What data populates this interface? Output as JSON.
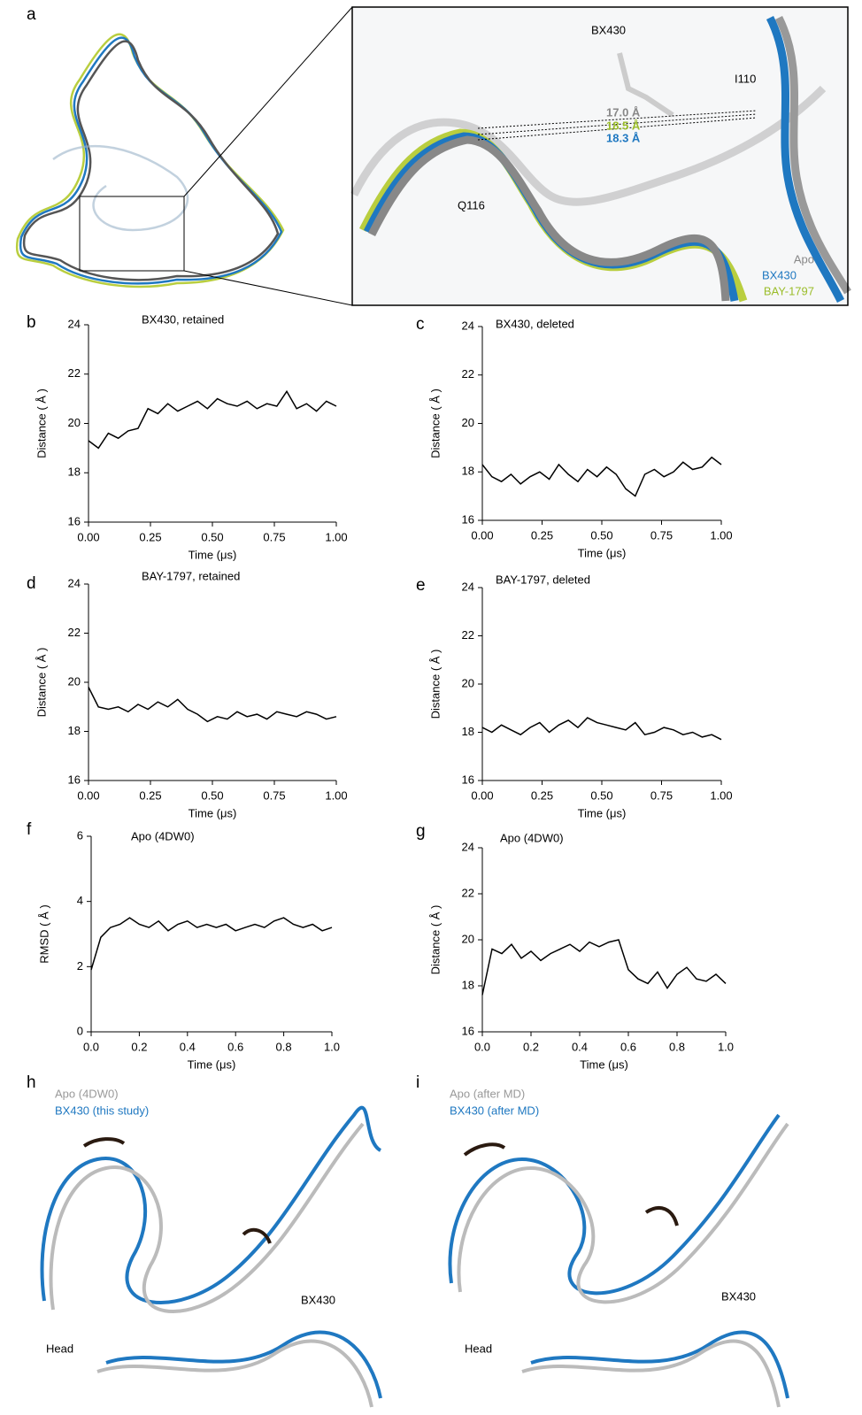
{
  "figure": {
    "panel_labels": [
      "a",
      "b",
      "c",
      "d",
      "e",
      "f",
      "g",
      "h",
      "i"
    ],
    "a": {
      "ligand": "BX430",
      "residue1": "I110",
      "residue2": "Q116",
      "distances": [
        "17.0 Å",
        "18.5 Å",
        "18.3 Å"
      ],
      "legend": [
        "Apo",
        "BX430",
        "BAY-1797"
      ]
    },
    "h": {
      "legend": [
        "Apo (4DW0)",
        "BX430 (this study)"
      ],
      "ligand": "BX430",
      "region": "Head"
    },
    "i": {
      "legend": [
        "Apo (after MD)",
        "BX430 (after MD)"
      ],
      "ligand": "BX430",
      "region": "Head"
    }
  },
  "chart_data": [
    {
      "type": "line",
      "title": "BX430, retained",
      "xlabel": "Time (μs)",
      "ylabel": "Distance ( Å )",
      "color": "#000000",
      "x": [
        0,
        0.04,
        0.08,
        0.12,
        0.16,
        0.2,
        0.24,
        0.28,
        0.32,
        0.36,
        0.4,
        0.44,
        0.48,
        0.52,
        0.56,
        0.6,
        0.64,
        0.68,
        0.72,
        0.76,
        0.8,
        0.84,
        0.88,
        0.92,
        0.96,
        1
      ],
      "values": [
        19.3,
        19.0,
        19.6,
        19.4,
        19.7,
        19.8,
        20.6,
        20.4,
        20.8,
        20.5,
        20.7,
        20.9,
        20.6,
        21.0,
        20.8,
        20.7,
        20.9,
        20.6,
        20.8,
        20.7,
        21.3,
        20.6,
        20.8,
        20.5,
        20.9,
        20.7
      ],
      "xlim": [
        0,
        1
      ],
      "ylim": [
        16,
        24
      ],
      "yticks": [
        16,
        18,
        20,
        22,
        24
      ],
      "xticks": [
        {
          "value": 0,
          "label": "0.00"
        },
        {
          "value": 0.25,
          "label": "0.25"
        },
        {
          "value": 0.5,
          "label": "0.50"
        },
        {
          "value": 0.75,
          "label": "0.75"
        },
        {
          "value": 1,
          "label": "1.00"
        }
      ]
    },
    {
      "type": "line",
      "title": "BX430, deleted",
      "xlabel": "Time (μs)",
      "ylabel": "Distance ( Å )",
      "color": "#000000",
      "x": [
        0,
        0.04,
        0.08,
        0.12,
        0.16,
        0.2,
        0.24,
        0.28,
        0.32,
        0.36,
        0.4,
        0.44,
        0.48,
        0.52,
        0.56,
        0.6,
        0.64,
        0.68,
        0.72,
        0.76,
        0.8,
        0.84,
        0.88,
        0.92,
        0.96,
        1
      ],
      "values": [
        18.3,
        17.8,
        17.6,
        17.9,
        17.5,
        17.8,
        18.0,
        17.7,
        18.3,
        17.9,
        17.6,
        18.1,
        17.8,
        18.2,
        17.9,
        17.3,
        17.0,
        17.9,
        18.1,
        17.8,
        18.0,
        18.4,
        18.1,
        18.2,
        18.6,
        18.3
      ],
      "xlim": [
        0,
        1
      ],
      "ylim": [
        16,
        24
      ],
      "yticks": [
        16,
        18,
        20,
        22,
        24
      ],
      "xticks": [
        {
          "value": 0,
          "label": "0.00"
        },
        {
          "value": 0.25,
          "label": "0.25"
        },
        {
          "value": 0.5,
          "label": "0.50"
        },
        {
          "value": 0.75,
          "label": "0.75"
        },
        {
          "value": 1,
          "label": "1.00"
        }
      ]
    },
    {
      "type": "line",
      "title": "BAY-1797, retained",
      "xlabel": "Time (μs)",
      "ylabel": "Distance ( Å )",
      "color": "#000000",
      "x": [
        0,
        0.04,
        0.08,
        0.12,
        0.16,
        0.2,
        0.24,
        0.28,
        0.32,
        0.36,
        0.4,
        0.44,
        0.48,
        0.52,
        0.56,
        0.6,
        0.64,
        0.68,
        0.72,
        0.76,
        0.8,
        0.84,
        0.88,
        0.92,
        0.96,
        1
      ],
      "values": [
        19.8,
        19.0,
        18.9,
        19.0,
        18.8,
        19.1,
        18.9,
        19.2,
        19.0,
        19.3,
        18.9,
        18.7,
        18.4,
        18.6,
        18.5,
        18.8,
        18.6,
        18.7,
        18.5,
        18.8,
        18.7,
        18.6,
        18.8,
        18.7,
        18.5,
        18.6
      ],
      "xlim": [
        0,
        1
      ],
      "ylim": [
        16,
        24
      ],
      "yticks": [
        16,
        18,
        20,
        22,
        24
      ],
      "xticks": [
        {
          "value": 0,
          "label": "0.00"
        },
        {
          "value": 0.25,
          "label": "0.25"
        },
        {
          "value": 0.5,
          "label": "0.50"
        },
        {
          "value": 0.75,
          "label": "0.75"
        },
        {
          "value": 1,
          "label": "1.00"
        }
      ]
    },
    {
      "type": "line",
      "title": "BAY-1797, deleted",
      "xlabel": "Time (μs)",
      "ylabel": "Distance ( Å )",
      "color": "#000000",
      "x": [
        0,
        0.04,
        0.08,
        0.12,
        0.16,
        0.2,
        0.24,
        0.28,
        0.32,
        0.36,
        0.4,
        0.44,
        0.48,
        0.52,
        0.56,
        0.6,
        0.64,
        0.68,
        0.72,
        0.76,
        0.8,
        0.84,
        0.88,
        0.92,
        0.96,
        1
      ],
      "values": [
        18.2,
        18.0,
        18.3,
        18.1,
        17.9,
        18.2,
        18.4,
        18.0,
        18.3,
        18.5,
        18.2,
        18.6,
        18.4,
        18.3,
        18.2,
        18.1,
        18.4,
        17.9,
        18.0,
        18.2,
        18.1,
        17.9,
        18.0,
        17.8,
        17.9,
        17.7
      ],
      "xlim": [
        0,
        1
      ],
      "ylim": [
        16,
        24
      ],
      "yticks": [
        16,
        18,
        20,
        22,
        24
      ],
      "xticks": [
        {
          "value": 0,
          "label": "0.00"
        },
        {
          "value": 0.25,
          "label": "0.25"
        },
        {
          "value": 0.5,
          "label": "0.50"
        },
        {
          "value": 0.75,
          "label": "0.75"
        },
        {
          "value": 1,
          "label": "1.00"
        }
      ]
    },
    {
      "type": "line",
      "title": "Apo (4DW0)",
      "xlabel": "Time (μs)",
      "ylabel": "RMSD ( Å )",
      "color": "#000000",
      "x": [
        0,
        0.04,
        0.08,
        0.12,
        0.16,
        0.2,
        0.24,
        0.28,
        0.32,
        0.36,
        0.4,
        0.44,
        0.48,
        0.52,
        0.56,
        0.6,
        0.64,
        0.68,
        0.72,
        0.76,
        0.8,
        0.84,
        0.88,
        0.92,
        0.96,
        1
      ],
      "values": [
        1.9,
        2.9,
        3.2,
        3.3,
        3.5,
        3.3,
        3.2,
        3.4,
        3.1,
        3.3,
        3.4,
        3.2,
        3.3,
        3.2,
        3.3,
        3.1,
        3.2,
        3.3,
        3.2,
        3.4,
        3.5,
        3.3,
        3.2,
        3.3,
        3.1,
        3.2
      ],
      "xlim": [
        0,
        1
      ],
      "ylim": [
        0,
        6
      ],
      "yticks": [
        0,
        2,
        4,
        6
      ],
      "xticks": [
        {
          "value": 0,
          "label": "0.0"
        },
        {
          "value": 0.2,
          "label": "0.2"
        },
        {
          "value": 0.4,
          "label": "0.4"
        },
        {
          "value": 0.6,
          "label": "0.6"
        },
        {
          "value": 0.8,
          "label": "0.8"
        },
        {
          "value": 1,
          "label": "1.0"
        }
      ]
    },
    {
      "type": "line",
      "title": "Apo (4DW0)",
      "xlabel": "Time (μs)",
      "ylabel": "Distance ( Å )",
      "color": "#000000",
      "x": [
        0,
        0.04,
        0.08,
        0.12,
        0.16,
        0.2,
        0.24,
        0.28,
        0.32,
        0.36,
        0.4,
        0.44,
        0.48,
        0.52,
        0.56,
        0.6,
        0.64,
        0.68,
        0.72,
        0.76,
        0.8,
        0.84,
        0.88,
        0.92,
        0.96,
        1
      ],
      "values": [
        17.6,
        19.6,
        19.4,
        19.8,
        19.2,
        19.5,
        19.1,
        19.4,
        19.6,
        19.8,
        19.5,
        19.9,
        19.7,
        19.9,
        20.0,
        18.7,
        18.3,
        18.1,
        18.6,
        17.9,
        18.5,
        18.8,
        18.3,
        18.2,
        18.5,
        18.1
      ],
      "xlim": [
        0,
        1
      ],
      "ylim": [
        16,
        24
      ],
      "yticks": [
        16,
        18,
        20,
        22,
        24
      ],
      "xticks": [
        {
          "value": 0,
          "label": "0.0"
        },
        {
          "value": 0.2,
          "label": "0.2"
        },
        {
          "value": 0.4,
          "label": "0.4"
        },
        {
          "value": 0.6,
          "label": "0.6"
        },
        {
          "value": 0.8,
          "label": "0.8"
        },
        {
          "value": 1,
          "label": "1.0"
        }
      ]
    }
  ]
}
